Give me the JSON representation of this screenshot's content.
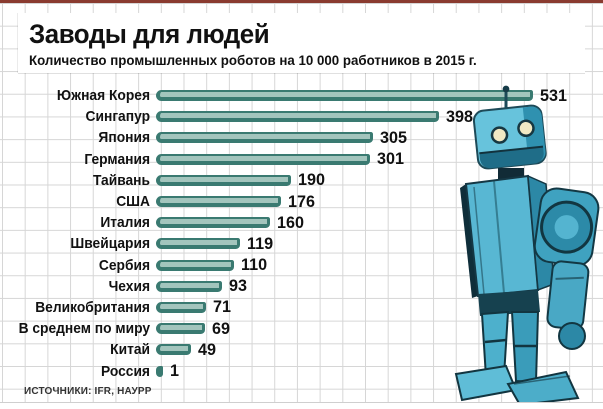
{
  "header": {
    "title": "Заводы для людей",
    "subtitle": "Количество промышленных роботов на 10 000 работников в 2015 г."
  },
  "source": "ИСТОЧНИКИ: IFR, НАУРР",
  "colors": {
    "accent_top_strip": "#8a3b30",
    "bar_fill": "#a3c5bd",
    "bar_border": "#3a7a71",
    "grid_line": "#d6d6d6",
    "text": "#111111",
    "robot_main": "#57b6d2"
  },
  "icons": {
    "illustration": "toy-robot-illustration"
  },
  "chart_data": {
    "type": "bar",
    "orientation": "horizontal",
    "title": "Заводы для людей",
    "subtitle": "Количество промышленных роботов на 10 000 работников в 2015 г.",
    "categories": [
      "Южная Корея",
      "Сингапур",
      "Япония",
      "Германия",
      "Тайвань",
      "США",
      "Италия",
      "Швейцария",
      "Сербия",
      "Чехия",
      "Великобритания",
      "В среднем по миру",
      "Китай",
      "Россия"
    ],
    "values": [
      531,
      398,
      305,
      301,
      190,
      176,
      160,
      119,
      110,
      93,
      71,
      69,
      49,
      1
    ],
    "value_labels_shown": true,
    "xlim": [
      0,
      531
    ],
    "grid": true,
    "legend": "none"
  }
}
